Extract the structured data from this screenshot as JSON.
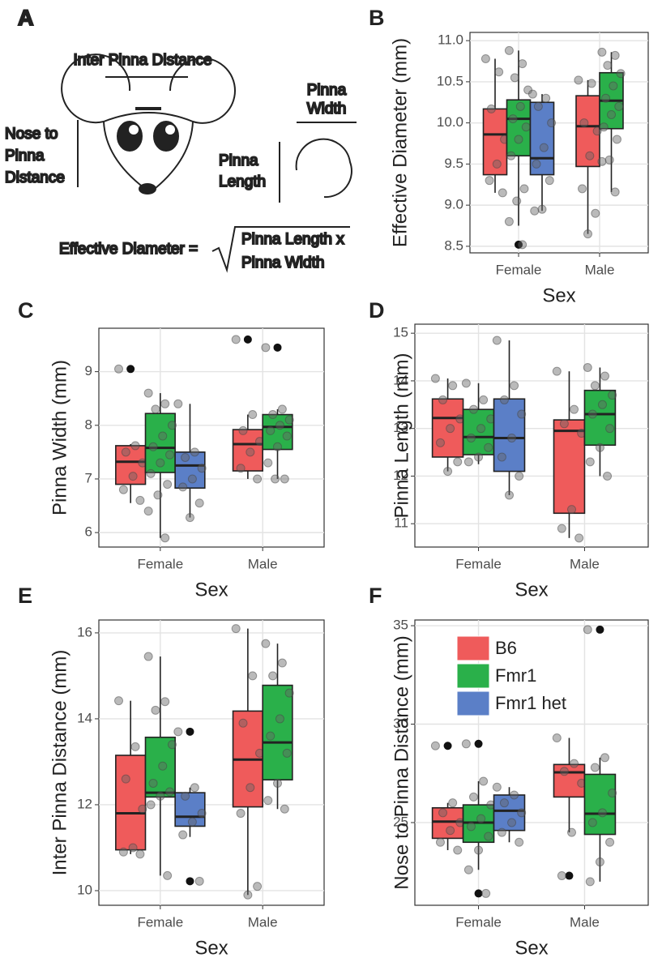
{
  "diagram": {
    "panel": "A",
    "inter_pinna": "Inter Pinna Distance",
    "nose_to_pinna": [
      "Nose to",
      "Pinna",
      "Distance"
    ],
    "pinna_width": [
      "Pinna",
      "Width"
    ],
    "pinna_length": [
      "Pinna",
      "Length"
    ],
    "formula_left": "Effective Diameter =",
    "formula_right": [
      "Pinna Length x",
      "Pinna Width"
    ]
  },
  "chart_data": [
    {
      "type": "box",
      "panel": "B",
      "xlabel": "Sex",
      "ylabel": "Effective Diameter (mm)",
      "categories": [
        "Female",
        "Male"
      ],
      "ylim": [
        8.42,
        11.1
      ],
      "yticks": [
        8.5,
        {
          "value": 9,
          "label": "9.0"
        },
        9.5,
        {
          "value": 10,
          "label": "10.0"
        },
        10.5,
        {
          "value": 11,
          "label": "11.0"
        }
      ],
      "grid": true,
      "legend": false,
      "series": [
        {
          "name": "B6",
          "color": "#ef5b5b",
          "values": [
            {
              "low": 9.15,
              "q1": 9.37,
              "median": 9.86,
              "q3": 10.17,
              "high": 10.78,
              "points": [
                10.78,
                10.62,
                10.17,
                9.8,
                9.5,
                9.3,
                9.15
              ]
            },
            {
              "low": 8.65,
              "q1": 9.47,
              "median": 9.96,
              "q3": 10.33,
              "high": 10.52,
              "points": [
                10.52,
                10.48,
                10.0,
                9.9,
                9.6,
                9.2,
                8.9,
                8.65
              ]
            }
          ]
        },
        {
          "name": "Fmr1",
          "color": "#2ab04a",
          "values": [
            {
              "low": 8.75,
              "q1": 9.6,
              "median": 10.05,
              "q3": 10.28,
              "high": 10.88,
              "outliers": [
                8.52
              ],
              "points": [
                10.88,
                10.72,
                10.55,
                10.4,
                10.2,
                10.05,
                9.95,
                9.8,
                9.6,
                9.2,
                9.05,
                8.8,
                8.52
              ]
            },
            {
              "low": 9.16,
              "q1": 9.93,
              "median": 10.27,
              "q3": 10.61,
              "high": 10.86,
              "points": [
                10.86,
                10.82,
                10.7,
                10.6,
                10.45,
                10.3,
                10.2,
                10.1,
                9.95,
                9.8,
                9.55,
                9.53,
                9.16
              ]
            }
          ]
        },
        {
          "name": "Fmr1 het",
          "color": "#5b7fc7",
          "values": [
            {
              "low": 8.93,
              "q1": 9.37,
              "median": 9.57,
              "q3": 10.25,
              "high": 10.35,
              "points": [
                10.35,
                10.3,
                10.2,
                10.0,
                9.7,
                9.5,
                9.3,
                8.95,
                8.93
              ]
            },
            null
          ]
        }
      ]
    },
    {
      "type": "box",
      "panel": "C",
      "xlabel": "Sex",
      "ylabel": "Pinna Width (mm)",
      "categories": [
        "Female",
        "Male"
      ],
      "ylim": [
        5.73,
        9.81
      ],
      "yticks": [
        6,
        7,
        8,
        9
      ],
      "grid": true,
      "legend": false,
      "series": [
        {
          "name": "B6",
          "color": "#ef5b5b",
          "values": [
            {
              "low": 6.55,
              "q1": 6.9,
              "median": 7.32,
              "q3": 7.62,
              "high": 7.65,
              "outliers": [
                9.05
              ],
              "points": [
                9.05,
                7.62,
                7.5,
                7.3,
                7.05,
                6.8,
                6.6
              ]
            },
            {
              "low": 7.0,
              "q1": 7.15,
              "median": 7.65,
              "q3": 7.92,
              "high": 8.2,
              "outliers": [
                9.6
              ],
              "points": [
                9.6,
                8.2,
                7.9,
                7.7,
                7.5,
                7.2,
                7.0
              ]
            }
          ]
        },
        {
          "name": "Fmr1",
          "color": "#2ab04a",
          "values": [
            {
              "low": 5.9,
              "q1": 7.12,
              "median": 7.58,
              "q3": 8.22,
              "high": 8.6,
              "points": [
                8.6,
                8.4,
                8.3,
                8.0,
                7.8,
                7.6,
                7.45,
                7.3,
                7.1,
                6.9,
                6.7,
                6.4,
                5.9
              ]
            },
            {
              "low": 7.0,
              "q1": 7.55,
              "median": 7.97,
              "q3": 8.2,
              "high": 8.3,
              "outliers": [
                9.45
              ],
              "points": [
                9.45,
                8.3,
                8.2,
                8.1,
                8.0,
                7.9,
                7.8,
                7.6,
                7.3,
                7.0,
                7.0
              ]
            }
          ]
        },
        {
          "name": "Fmr1 het",
          "color": "#5b7fc7",
          "values": [
            {
              "low": 6.28,
              "q1": 6.83,
              "median": 7.25,
              "q3": 7.5,
              "high": 8.4,
              "points": [
                8.4,
                7.5,
                7.4,
                7.2,
                7.0,
                6.85,
                6.55,
                6.28
              ]
            },
            null
          ]
        }
      ]
    },
    {
      "type": "box",
      "panel": "D",
      "xlabel": "Sex",
      "ylabel": "Pinna Length (mm)",
      "categories": [
        "Female",
        "Male"
      ],
      "ylim": [
        10.51,
        15.19
      ],
      "yticks": [
        11,
        12,
        13,
        14,
        15
      ],
      "grid": true,
      "legend": false,
      "series": [
        {
          "name": "B6",
          "color": "#ef5b5b",
          "values": [
            {
              "low": 12.1,
              "q1": 12.4,
              "median": 13.22,
              "q3": 13.62,
              "high": 14.05,
              "points": [
                14.05,
                13.9,
                13.6,
                13.2,
                13.0,
                12.7,
                12.3,
                12.1
              ]
            },
            {
              "low": 10.7,
              "q1": 11.22,
              "median": 12.95,
              "q3": 13.18,
              "high": 14.2,
              "points": [
                14.2,
                13.4,
                13.1,
                12.9,
                11.3,
                10.9,
                10.7
              ]
            }
          ]
        },
        {
          "name": "Fmr1",
          "color": "#2ab04a",
          "values": [
            {
              "low": 12.25,
              "q1": 12.45,
              "median": 12.82,
              "q3": 13.4,
              "high": 13.95,
              "points": [
                13.95,
                13.6,
                13.4,
                13.2,
                13.0,
                12.8,
                12.6,
                12.4,
                12.3
              ]
            },
            {
              "low": 12.0,
              "q1": 12.65,
              "median": 13.3,
              "q3": 13.8,
              "high": 14.28,
              "points": [
                14.28,
                14.1,
                13.9,
                13.7,
                13.5,
                13.3,
                13.0,
                12.6,
                12.3,
                12.0
              ]
            }
          ]
        },
        {
          "name": "Fmr1 het",
          "color": "#5b7fc7",
          "values": [
            {
              "low": 11.6,
              "q1": 12.1,
              "median": 12.8,
              "q3": 13.62,
              "high": 14.85,
              "points": [
                14.85,
                13.9,
                13.6,
                13.3,
                12.8,
                12.4,
                12.0,
                11.6
              ]
            },
            null
          ]
        }
      ]
    },
    {
      "type": "box",
      "panel": "E",
      "xlabel": "Sex",
      "ylabel": "Inter Pinna Distance (mm)",
      "categories": [
        "Female",
        "Male"
      ],
      "ylim": [
        9.66,
        16.3
      ],
      "yticks": [
        10,
        12,
        14,
        16
      ],
      "grid": true,
      "legend": false,
      "series": [
        {
          "name": "B6",
          "color": "#ef5b5b",
          "values": [
            {
              "low": 10.85,
              "q1": 10.95,
              "median": 11.8,
              "q3": 13.15,
              "high": 14.42,
              "points": [
                14.42,
                13.35,
                12.6,
                11.9,
                11.0,
                10.9,
                10.85
              ]
            },
            {
              "low": 9.9,
              "q1": 11.95,
              "median": 13.05,
              "q3": 14.18,
              "high": 16.1,
              "points": [
                16.1,
                15.0,
                13.9,
                13.2,
                12.4,
                11.8,
                10.1,
                9.9
              ]
            }
          ]
        },
        {
          "name": "Fmr1",
          "color": "#2ab04a",
          "values": [
            {
              "low": 10.35,
              "q1": 12.18,
              "median": 12.28,
              "q3": 13.57,
              "high": 15.45,
              "points": [
                15.45,
                14.4,
                14.2,
                13.4,
                12.9,
                12.5,
                12.3,
                12.2,
                12.0,
                10.35
              ]
            },
            {
              "low": 11.9,
              "q1": 12.58,
              "median": 13.45,
              "q3": 14.78,
              "high": 15.75,
              "points": [
                15.75,
                15.3,
                15.0,
                14.6,
                14.0,
                13.6,
                13.2,
                12.5,
                12.1,
                11.9
              ]
            }
          ]
        },
        {
          "name": "Fmr1 het",
          "color": "#5b7fc7",
          "values": [
            {
              "low": 11.25,
              "q1": 11.5,
              "median": 11.72,
              "q3": 12.28,
              "high": 12.4,
              "outliers": [
                13.7,
                10.22
              ],
              "points": [
                13.7,
                12.4,
                12.2,
                11.8,
                11.6,
                11.3,
                10.22
              ]
            },
            null
          ]
        }
      ]
    },
    {
      "type": "box",
      "panel": "F",
      "xlabel": "Sex",
      "ylabel": "Nose to Pinna Distance (mm)",
      "categories": [
        "Female",
        "Male"
      ],
      "ylim": [
        20.8,
        35.29
      ],
      "yticks": [
        25,
        30,
        35
      ],
      "grid": true,
      "legend": "top-left",
      "series": [
        {
          "name": "B6",
          "color": "#ef5b5b",
          "values": [
            {
              "low": 23.6,
              "q1": 24.2,
              "median": 25.05,
              "q3": 25.75,
              "high": 26.0,
              "outliers": [
                28.9
              ],
              "points": [
                28.9,
                26.0,
                25.5,
                25.0,
                24.6,
                24.0,
                23.6
              ]
            },
            {
              "low": 24.5,
              "q1": 26.3,
              "median": 27.55,
              "q3": 27.95,
              "high": 29.3,
              "outliers": [
                22.3
              ],
              "points": [
                29.3,
                28.0,
                27.6,
                27.0,
                24.5,
                22.3
              ]
            }
          ]
        },
        {
          "name": "Fmr1",
          "color": "#2ab04a",
          "values": [
            {
              "low": 22.6,
              "q1": 24.0,
              "median": 25.0,
              "q3": 25.9,
              "high": 27.1,
              "outliers": [
                29.0,
                21.4
              ],
              "points": [
                29.0,
                27.1,
                26.3,
                25.9,
                25.2,
                24.8,
                24.3,
                23.6,
                22.6,
                21.4
              ]
            },
            {
              "low": 22.0,
              "q1": 24.4,
              "median": 25.45,
              "q3": 27.45,
              "high": 28.3,
              "outliers": [
                34.8
              ],
              "points": [
                34.8,
                28.3,
                27.8,
                26.5,
                25.5,
                25.0,
                24.0,
                23.0,
                22.0
              ]
            }
          ]
        },
        {
          "name": "Fmr1 het",
          "color": "#5b7fc7",
          "values": [
            {
              "low": 24.0,
              "q1": 24.6,
              "median": 25.6,
              "q3": 26.4,
              "high": 26.8,
              "points": [
                26.8,
                26.4,
                26.0,
                25.5,
                25.0,
                24.5,
                24.0
              ]
            },
            null
          ]
        }
      ]
    }
  ]
}
